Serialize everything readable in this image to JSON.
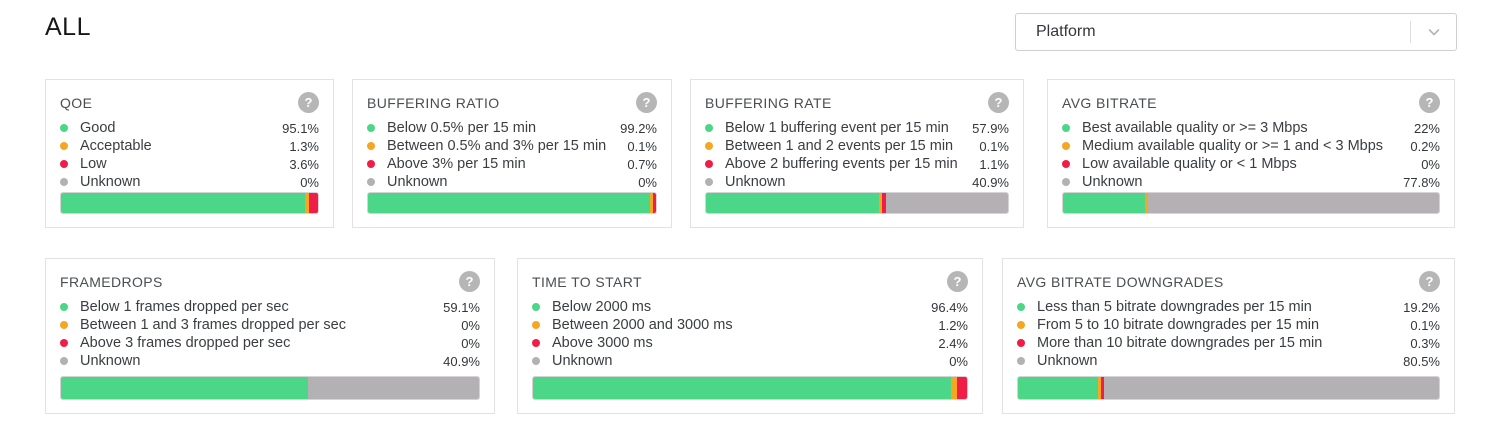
{
  "page": {
    "title": "ALL"
  },
  "filter": {
    "label": "Platform",
    "chevron_icon": "chevron-down"
  },
  "ui": {
    "help_icon_glyph": "?"
  },
  "colors": {
    "good": "#4bd787",
    "acceptable": "#f5a623",
    "low": "#f01d46",
    "unknown": "#b4b1b4",
    "help_circle": "#b6b6b6",
    "card_border": "#e2e2e2"
  },
  "cards": [
    {
      "title": "QOE",
      "legend": [
        {
          "key": "good",
          "label": "Good",
          "value": 95.1,
          "value_label": "95.1%"
        },
        {
          "key": "acceptable",
          "label": "Acceptable",
          "value": 1.3,
          "value_label": "1.3%"
        },
        {
          "key": "low",
          "label": "Low",
          "value": 3.6,
          "value_label": "3.6%"
        },
        {
          "key": "unknown",
          "label": "Unknown",
          "value": 0,
          "value_label": "0%"
        }
      ]
    },
    {
      "title": "BUFFERING RATIO",
      "legend": [
        {
          "key": "good",
          "label": "Below 0.5% per 15 min",
          "value": 99.2,
          "value_label": "99.2%"
        },
        {
          "key": "acceptable",
          "label": "Between 0.5% and 3% per 15 min",
          "value": 0.1,
          "value_label": "0.1%"
        },
        {
          "key": "low",
          "label": "Above 3% per 15 min",
          "value": 0.7,
          "value_label": "0.7%"
        },
        {
          "key": "unknown",
          "label": "Unknown",
          "value": 0,
          "value_label": "0%"
        }
      ]
    },
    {
      "title": "BUFFERING RATE",
      "legend": [
        {
          "key": "good",
          "label": "Below 1 buffering event per 15 min",
          "value": 57.9,
          "value_label": "57.9%"
        },
        {
          "key": "acceptable",
          "label": "Between 1 and 2 events per 15 min",
          "value": 0.1,
          "value_label": "0.1%"
        },
        {
          "key": "low",
          "label": "Above 2 buffering events per 15 min",
          "value": 1.1,
          "value_label": "1.1%"
        },
        {
          "key": "unknown",
          "label": "Unknown",
          "value": 40.9,
          "value_label": "40.9%"
        }
      ]
    },
    {
      "title": "AVG BITRATE",
      "legend": [
        {
          "key": "good",
          "label": "Best available quality or >= 3 Mbps",
          "value": 22,
          "value_label": "22%"
        },
        {
          "key": "acceptable",
          "label": "Medium available quality or >= 1 and < 3 Mbps",
          "value": 0.2,
          "value_label": "0.2%"
        },
        {
          "key": "low",
          "label": "Low available quality or < 1 Mbps",
          "value": 0,
          "value_label": "0%"
        },
        {
          "key": "unknown",
          "label": "Unknown",
          "value": 77.8,
          "value_label": "77.8%"
        }
      ]
    },
    {
      "title": "FRAMEDROPS",
      "legend": [
        {
          "key": "good",
          "label": "Below 1 frames dropped per sec",
          "value": 59.1,
          "value_label": "59.1%"
        },
        {
          "key": "acceptable",
          "label": "Between 1 and 3 frames dropped per sec",
          "value": 0,
          "value_label": "0%"
        },
        {
          "key": "low",
          "label": "Above 3 frames dropped per sec",
          "value": 0,
          "value_label": "0%"
        },
        {
          "key": "unknown",
          "label": "Unknown",
          "value": 40.9,
          "value_label": "40.9%"
        }
      ]
    },
    {
      "title": "TIME TO START",
      "legend": [
        {
          "key": "good",
          "label": "Below 2000 ms",
          "value": 96.4,
          "value_label": "96.4%"
        },
        {
          "key": "acceptable",
          "label": "Between 2000 and 3000 ms",
          "value": 1.2,
          "value_label": "1.2%"
        },
        {
          "key": "low",
          "label": "Above 3000 ms",
          "value": 2.4,
          "value_label": "2.4%"
        },
        {
          "key": "unknown",
          "label": "Unknown",
          "value": 0,
          "value_label": "0%"
        }
      ]
    },
    {
      "title": "AVG BITRATE DOWNGRADES",
      "legend": [
        {
          "key": "good",
          "label": "Less than 5 bitrate downgrades per 15 min",
          "value": 19.2,
          "value_label": "19.2%"
        },
        {
          "key": "acceptable",
          "label": "From 5 to 10 bitrate downgrades per 15 min",
          "value": 0.1,
          "value_label": "0.1%"
        },
        {
          "key": "low",
          "label": "More than 10 bitrate downgrades per 15 min",
          "value": 0.3,
          "value_label": "0.3%"
        },
        {
          "key": "unknown",
          "label": "Unknown",
          "value": 80.5,
          "value_label": "80.5%"
        }
      ]
    }
  ]
}
